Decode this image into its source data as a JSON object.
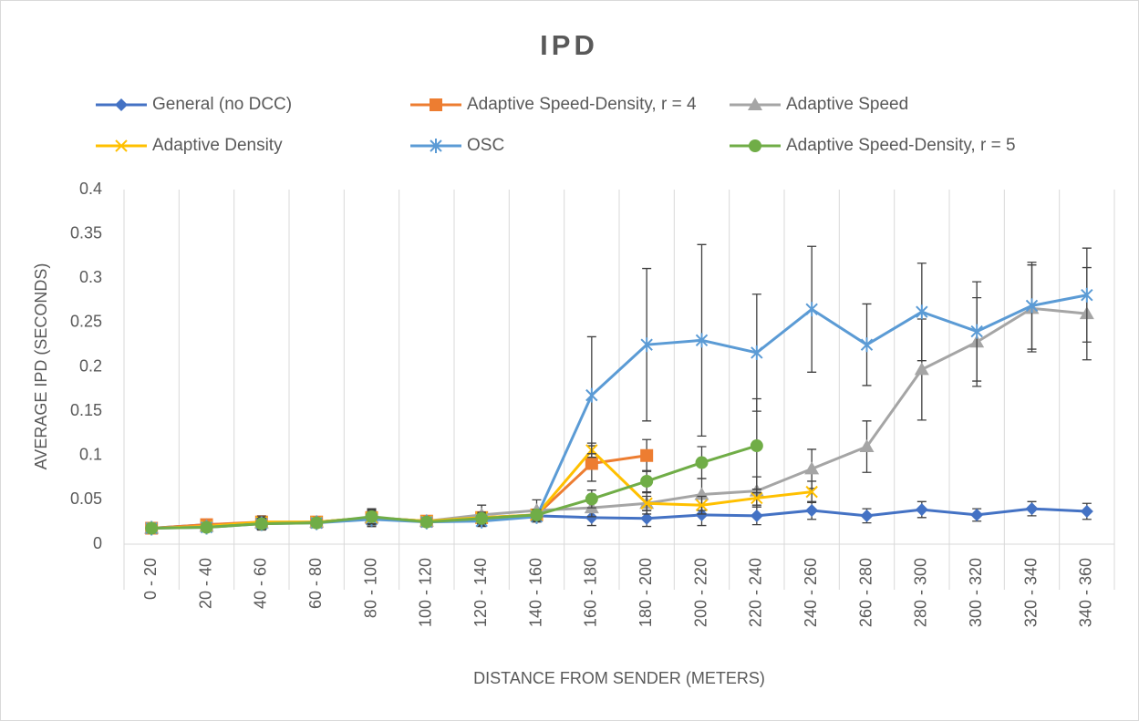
{
  "chart_data": {
    "type": "line",
    "title": "IPD",
    "x_label": "DISTANCE FROM SENDER (METERS)",
    "y_label": "AVERAGE IPD (SECONDS)",
    "categories": [
      "0 - 20",
      "20 - 40",
      "40 - 60",
      "60 - 80",
      "80 - 100",
      "100 - 120",
      "120 - 140",
      "140 - 160",
      "160 - 180",
      "180 - 200",
      "200 - 220",
      "220 - 240",
      "240 - 260",
      "260 - 280",
      "280 - 300",
      "300 - 320",
      "320 - 340",
      "340 - 360"
    ],
    "ylim": [
      0,
      0.4
    ],
    "yticks": [
      0,
      0.05,
      0.1,
      0.15,
      0.2,
      0.25,
      0.3,
      0.35,
      0.4
    ],
    "grid": true,
    "legend": "top",
    "series": [
      {
        "name": "General (no DCC)",
        "color": "#4472c4",
        "marker": "diamond",
        "values": [
          0.018,
          0.022,
          0.024,
          0.025,
          0.03,
          0.026,
          0.027,
          0.032,
          0.03,
          0.029,
          0.033,
          0.032,
          0.038,
          0.032,
          0.039,
          0.033,
          0.04,
          0.037
        ],
        "errors": [
          0.004,
          0.004,
          0.008,
          0.004,
          0.01,
          0.004,
          0.006,
          0.006,
          0.009,
          0.009,
          0.012,
          0.01,
          0.01,
          0.008,
          0.009,
          0.007,
          0.008,
          0.009
        ]
      },
      {
        "name": "Adaptive Speed-Density, r = 4",
        "color": "#ed7d31",
        "marker": "square",
        "values": [
          0.018,
          0.022,
          0.025,
          0.025,
          0.03,
          0.026,
          0.03,
          0.033,
          0.091,
          0.1,
          null,
          null,
          null,
          null,
          null,
          null,
          null,
          null
        ],
        "errors": [
          0.003,
          0.004,
          0.006,
          0.004,
          0.008,
          0.004,
          0.006,
          0.006,
          0.02,
          0.018,
          null,
          null,
          null,
          null,
          null,
          null,
          null,
          null
        ]
      },
      {
        "name": "Adaptive Speed",
        "color": "#a5a5a5",
        "marker": "triangle",
        "values": [
          0.018,
          0.02,
          0.024,
          0.025,
          0.03,
          0.026,
          0.033,
          0.038,
          0.041,
          0.046,
          0.056,
          0.06,
          0.085,
          0.11,
          0.197,
          0.228,
          0.266,
          0.26
        ],
        "errors": [
          0.003,
          0.003,
          0.006,
          0.004,
          0.008,
          0.004,
          0.011,
          0.012,
          0.01,
          0.012,
          0.018,
          0.016,
          0.022,
          0.029,
          0.057,
          0.05,
          0.049,
          0.052
        ]
      },
      {
        "name": "Adaptive Density",
        "color": "#ffc000",
        "marker": "x",
        "values": [
          0.018,
          0.02,
          0.025,
          0.025,
          0.03,
          0.026,
          0.03,
          0.033,
          0.106,
          0.046,
          0.044,
          0.052,
          0.059,
          null,
          null,
          null,
          null,
          null
        ],
        "errors": [
          0.003,
          0.003,
          0.006,
          0.004,
          0.008,
          0.004,
          0.006,
          0.006,
          0.008,
          0.008,
          0.01,
          0.01,
          0.012,
          null,
          null,
          null,
          null,
          null
        ]
      },
      {
        "name": "OSC",
        "color": "#5b9bd5",
        "marker": "star",
        "values": [
          0.018,
          0.019,
          0.023,
          0.024,
          0.028,
          0.025,
          0.026,
          0.031,
          0.168,
          0.225,
          0.23,
          0.216,
          0.265,
          0.225,
          0.262,
          0.24,
          0.269,
          0.281
        ],
        "errors": [
          0.003,
          0.003,
          0.006,
          0.004,
          0.008,
          0.004,
          0.006,
          0.006,
          0.066,
          0.086,
          0.108,
          0.066,
          0.071,
          0.046,
          0.055,
          0.056,
          0.049,
          0.053
        ]
      },
      {
        "name": "Adaptive Speed-Density, r = 5",
        "color": "#70ad47",
        "marker": "circle",
        "values": [
          0.018,
          0.019,
          0.023,
          0.024,
          0.031,
          0.025,
          0.029,
          0.033,
          0.051,
          0.071,
          0.092,
          0.111,
          null,
          null,
          null,
          null,
          null,
          null
        ],
        "errors": [
          0.003,
          0.003,
          0.006,
          0.004,
          0.008,
          0.004,
          0.006,
          0.006,
          0.01,
          0.012,
          0.018,
          0.053,
          null,
          null,
          null,
          null,
          null,
          null
        ]
      }
    ]
  }
}
